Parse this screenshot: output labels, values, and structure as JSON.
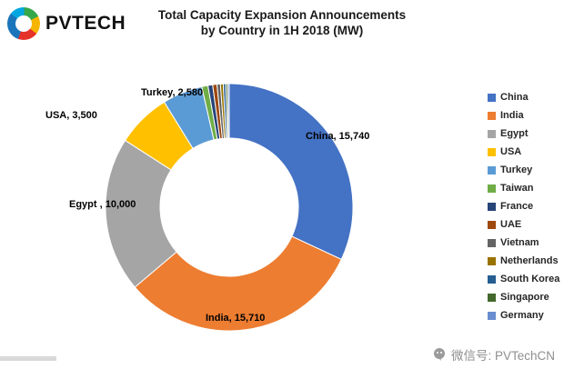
{
  "logo": {
    "brand": "PVTECH"
  },
  "chart_data": {
    "type": "pie",
    "variant": "donut",
    "title": "Total Capacity Expansion Announcements",
    "subtitle": "by Country in 1H 2018 (MW)",
    "unit": "MW",
    "legend_position": "right",
    "categories": [
      "China",
      "India",
      "Egypt",
      "USA",
      "Turkey",
      "Taiwan",
      "France",
      "UAE",
      "Vietnam",
      "Netherlands",
      "South Korea",
      "Singapore",
      "Germany"
    ],
    "values": [
      15740,
      15710,
      10000,
      3500,
      2580,
      400,
      300,
      280,
      220,
      180,
      160,
      120,
      100
    ],
    "colors": [
      "#4472C4",
      "#ED7D31",
      "#A5A5A5",
      "#FFC000",
      "#5B9BD5",
      "#70AD47",
      "#264478",
      "#9E480E",
      "#636363",
      "#997300",
      "#255E91",
      "#43682B",
      "#698ED0"
    ],
    "data_labels": [
      {
        "text": "China, 15,740"
      },
      {
        "text": "India, 15,710"
      },
      {
        "text": "Egypt , 10,000"
      },
      {
        "text": "USA, 3,500"
      },
      {
        "text": "Turkey, 2,580"
      }
    ]
  },
  "footer": {
    "wechat": "微信号: PVTechCN"
  }
}
